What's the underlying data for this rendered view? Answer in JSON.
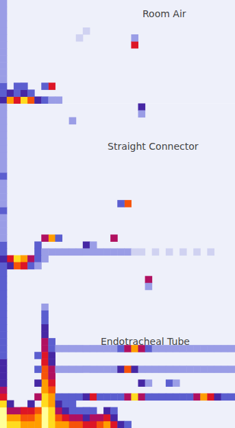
{
  "chart_data": [
    {
      "type": "heatmap",
      "title": "Room Air",
      "tick_labels": false,
      "grid": false,
      "xlim": [
        0,
        34
      ],
      "ylim": [
        0,
        15
      ],
      "color_range": [
        0,
        10
      ],
      "cells": [
        [
          0,
          0,
          4
        ],
        [
          0,
          1,
          3
        ],
        [
          0,
          2,
          3
        ],
        [
          0,
          3,
          2
        ],
        [
          0,
          4,
          2
        ],
        [
          0,
          5,
          2
        ],
        [
          0,
          6,
          2
        ],
        [
          0,
          7,
          2
        ],
        [
          0,
          8,
          2
        ],
        [
          0,
          9,
          2
        ],
        [
          0,
          10,
          2
        ],
        [
          0,
          11,
          2
        ],
        [
          0,
          12,
          2
        ],
        [
          0,
          13,
          2
        ],
        [
          0,
          14,
          2
        ],
        [
          1,
          0,
          8
        ],
        [
          2,
          0,
          6
        ],
        [
          3,
          0,
          9
        ],
        [
          4,
          0,
          7
        ],
        [
          5,
          0,
          4
        ],
        [
          6,
          0,
          3
        ],
        [
          7,
          0,
          2
        ],
        [
          8,
          0,
          2
        ],
        [
          1,
          1,
          4
        ],
        [
          2,
          1,
          3
        ],
        [
          3,
          1,
          4
        ],
        [
          4,
          1,
          3
        ],
        [
          7,
          2,
          6
        ],
        [
          6,
          2,
          3
        ],
        [
          2,
          2,
          3
        ],
        [
          3,
          2,
          3
        ],
        [
          19,
          8,
          6
        ],
        [
          19,
          9,
          2
        ],
        [
          11,
          9,
          1
        ],
        [
          12,
          10,
          1
        ]
      ]
    },
    {
      "type": "heatmap",
      "title": "Straight Connector",
      "tick_labels": false,
      "grid": false,
      "xlim": [
        0,
        34
      ],
      "ylim": [
        0,
        24
      ],
      "color_range": [
        0,
        10
      ],
      "cells": [
        [
          20,
          23,
          4
        ],
        [
          20,
          22,
          2
        ],
        [
          10,
          21,
          2
        ],
        [
          18,
          9,
          7
        ],
        [
          17,
          9,
          3
        ],
        [
          16,
          4,
          5
        ],
        [
          12,
          3,
          4
        ],
        [
          13,
          3,
          2
        ],
        [
          7,
          4,
          8
        ],
        [
          6,
          4,
          5
        ],
        [
          8,
          4,
          3
        ],
        [
          5,
          3,
          3
        ],
        [
          5,
          2,
          3
        ],
        [
          6,
          2,
          2
        ],
        [
          7,
          2,
          2
        ],
        [
          8,
          2,
          2
        ],
        [
          9,
          2,
          2
        ],
        [
          10,
          2,
          2
        ],
        [
          11,
          2,
          2
        ],
        [
          12,
          2,
          2
        ],
        [
          13,
          2,
          2
        ],
        [
          14,
          2,
          2
        ],
        [
          15,
          2,
          2
        ],
        [
          16,
          2,
          2
        ],
        [
          17,
          2,
          2
        ],
        [
          18,
          2,
          2
        ],
        [
          19,
          2,
          1
        ],
        [
          20,
          2,
          1
        ],
        [
          22,
          2,
          1
        ],
        [
          24,
          2,
          1
        ],
        [
          26,
          2,
          1
        ],
        [
          28,
          2,
          1
        ],
        [
          30,
          2,
          1
        ],
        [
          1,
          1,
          6
        ],
        [
          2,
          1,
          9
        ],
        [
          3,
          1,
          8
        ],
        [
          4,
          1,
          5
        ],
        [
          5,
          1,
          3
        ],
        [
          6,
          1,
          2
        ],
        [
          1,
          0,
          4
        ],
        [
          2,
          0,
          7
        ],
        [
          3,
          0,
          6
        ],
        [
          4,
          0,
          3
        ],
        [
          5,
          0,
          2
        ],
        [
          0,
          0,
          3
        ],
        [
          0,
          1,
          4
        ],
        [
          0,
          2,
          3
        ],
        [
          0,
          3,
          3
        ],
        [
          0,
          4,
          2
        ],
        [
          0,
          5,
          2
        ],
        [
          0,
          6,
          2
        ],
        [
          0,
          7,
          2
        ],
        [
          0,
          8,
          3
        ],
        [
          0,
          9,
          2
        ],
        [
          0,
          10,
          2
        ],
        [
          0,
          11,
          2
        ],
        [
          0,
          12,
          2
        ],
        [
          0,
          13,
          3
        ],
        [
          0,
          14,
          2
        ],
        [
          0,
          15,
          2
        ],
        [
          0,
          16,
          2
        ],
        [
          0,
          17,
          2
        ],
        [
          0,
          18,
          2
        ],
        [
          0,
          19,
          2
        ],
        [
          0,
          20,
          2
        ],
        [
          0,
          21,
          2
        ],
        [
          0,
          22,
          2
        ],
        [
          0,
          23,
          2
        ]
      ]
    },
    {
      "type": "heatmap",
      "title": "Endotracheal Tube",
      "tick_labels": false,
      "grid": false,
      "xlim": [
        0,
        34
      ],
      "ylim": [
        0,
        23
      ],
      "color_range": [
        0,
        10
      ],
      "cells": [
        [
          21,
          21,
          5
        ],
        [
          21,
          20,
          2
        ],
        [
          6,
          17,
          2
        ],
        [
          6,
          16,
          3
        ],
        [
          6,
          15,
          3
        ],
        [
          6,
          14,
          4
        ],
        [
          6,
          13,
          4
        ],
        [
          6,
          12,
          5
        ],
        [
          6,
          11,
          5
        ],
        [
          6,
          10,
          6
        ],
        [
          6,
          9,
          6
        ],
        [
          6,
          8,
          7
        ],
        [
          6,
          7,
          7
        ],
        [
          6,
          6,
          8
        ],
        [
          6,
          5,
          8
        ],
        [
          6,
          4,
          9
        ],
        [
          6,
          3,
          9
        ],
        [
          6,
          2,
          10
        ],
        [
          6,
          1,
          10
        ],
        [
          6,
          0,
          10
        ],
        [
          7,
          12,
          3
        ],
        [
          7,
          11,
          3
        ],
        [
          7,
          10,
          4
        ],
        [
          7,
          9,
          4
        ],
        [
          7,
          8,
          5
        ],
        [
          7,
          7,
          5
        ],
        [
          7,
          6,
          6
        ],
        [
          7,
          5,
          7
        ],
        [
          7,
          4,
          8
        ],
        [
          7,
          3,
          8
        ],
        [
          7,
          2,
          9
        ],
        [
          7,
          1,
          9
        ],
        [
          7,
          0,
          9
        ],
        [
          5,
          10,
          3
        ],
        [
          5,
          8,
          3
        ],
        [
          5,
          6,
          4
        ],
        [
          5,
          4,
          5
        ],
        [
          5,
          2,
          7
        ],
        [
          5,
          1,
          8
        ],
        [
          5,
          0,
          8
        ],
        [
          0,
          0,
          10
        ],
        [
          0,
          1,
          10
        ],
        [
          0,
          2,
          10
        ],
        [
          0,
          3,
          9
        ],
        [
          0,
          4,
          6
        ],
        [
          0,
          5,
          5
        ],
        [
          0,
          6,
          4
        ],
        [
          0,
          7,
          4
        ],
        [
          0,
          8,
          4
        ],
        [
          0,
          9,
          4
        ],
        [
          0,
          10,
          3
        ],
        [
          0,
          11,
          3
        ],
        [
          0,
          12,
          3
        ],
        [
          0,
          13,
          3
        ],
        [
          0,
          14,
          3
        ],
        [
          0,
          15,
          3
        ],
        [
          0,
          16,
          3
        ],
        [
          0,
          17,
          3
        ],
        [
          0,
          18,
          3
        ],
        [
          0,
          19,
          3
        ],
        [
          0,
          20,
          3
        ],
        [
          0,
          21,
          3
        ],
        [
          0,
          22,
          3
        ],
        [
          1,
          0,
          9
        ],
        [
          2,
          0,
          9
        ],
        [
          3,
          0,
          8
        ],
        [
          4,
          0,
          8
        ],
        [
          1,
          1,
          8
        ],
        [
          2,
          1,
          8
        ],
        [
          3,
          1,
          7
        ],
        [
          4,
          1,
          7
        ],
        [
          1,
          2,
          5
        ],
        [
          2,
          2,
          5
        ],
        [
          3,
          2,
          6
        ],
        [
          4,
          2,
          6
        ],
        [
          1,
          3,
          4
        ],
        [
          4,
          3,
          4
        ],
        [
          8,
          0,
          8
        ],
        [
          9,
          0,
          8
        ],
        [
          10,
          0,
          7
        ],
        [
          11,
          0,
          7
        ],
        [
          12,
          0,
          6
        ],
        [
          13,
          0,
          6
        ],
        [
          14,
          0,
          7
        ],
        [
          15,
          0,
          8
        ],
        [
          16,
          0,
          6
        ],
        [
          17,
          0,
          4
        ],
        [
          18,
          0,
          3
        ],
        [
          8,
          1,
          7
        ],
        [
          9,
          1,
          6
        ],
        [
          10,
          1,
          5
        ],
        [
          11,
          1,
          5
        ],
        [
          12,
          1,
          4
        ],
        [
          13,
          1,
          5
        ],
        [
          14,
          1,
          5
        ],
        [
          15,
          1,
          6
        ],
        [
          16,
          1,
          4
        ],
        [
          8,
          2,
          5
        ],
        [
          9,
          2,
          4
        ],
        [
          10,
          2,
          3
        ],
        [
          11,
          2,
          3
        ],
        [
          12,
          2,
          3
        ],
        [
          13,
          2,
          3
        ],
        [
          15,
          2,
          4
        ],
        [
          16,
          2,
          3
        ],
        [
          8,
          3,
          4
        ],
        [
          9,
          3,
          3
        ],
        [
          10,
          3,
          3
        ],
        [
          8,
          11,
          2
        ],
        [
          9,
          11,
          2
        ],
        [
          10,
          11,
          2
        ],
        [
          11,
          11,
          2
        ],
        [
          12,
          11,
          2
        ],
        [
          13,
          11,
          2
        ],
        [
          14,
          11,
          2
        ],
        [
          15,
          11,
          2
        ],
        [
          16,
          11,
          2
        ],
        [
          17,
          11,
          3
        ],
        [
          18,
          11,
          5
        ],
        [
          19,
          11,
          8
        ],
        [
          20,
          11,
          5
        ],
        [
          21,
          11,
          3
        ],
        [
          22,
          11,
          2
        ],
        [
          23,
          11,
          2
        ],
        [
          24,
          11,
          2
        ],
        [
          25,
          11,
          2
        ],
        [
          26,
          11,
          2
        ],
        [
          27,
          11,
          2
        ],
        [
          28,
          11,
          2
        ],
        [
          29,
          11,
          2
        ],
        [
          30,
          11,
          2
        ],
        [
          31,
          11,
          2
        ],
        [
          32,
          11,
          2
        ],
        [
          33,
          11,
          2
        ],
        [
          8,
          8,
          2
        ],
        [
          9,
          8,
          2
        ],
        [
          10,
          8,
          2
        ],
        [
          11,
          8,
          2
        ],
        [
          12,
          8,
          2
        ],
        [
          13,
          8,
          2
        ],
        [
          14,
          8,
          2
        ],
        [
          15,
          8,
          2
        ],
        [
          16,
          8,
          2
        ],
        [
          17,
          8,
          4
        ],
        [
          18,
          8,
          7
        ],
        [
          19,
          8,
          4
        ],
        [
          20,
          8,
          2
        ],
        [
          21,
          8,
          2
        ],
        [
          22,
          8,
          2
        ],
        [
          23,
          8,
          2
        ],
        [
          24,
          8,
          2
        ],
        [
          25,
          8,
          2
        ],
        [
          26,
          8,
          2
        ],
        [
          27,
          8,
          2
        ],
        [
          28,
          8,
          2
        ],
        [
          29,
          8,
          2
        ],
        [
          30,
          8,
          2
        ],
        [
          31,
          8,
          2
        ],
        [
          32,
          8,
          2
        ],
        [
          33,
          8,
          2
        ],
        [
          20,
          6,
          4
        ],
        [
          24,
          6,
          3
        ],
        [
          21,
          6,
          2
        ],
        [
          25,
          6,
          2
        ],
        [
          8,
          4,
          3
        ],
        [
          9,
          4,
          3
        ],
        [
          10,
          4,
          3
        ],
        [
          11,
          4,
          3
        ],
        [
          12,
          4,
          4
        ],
        [
          13,
          4,
          6
        ],
        [
          14,
          4,
          3
        ],
        [
          15,
          4,
          3
        ],
        [
          16,
          4,
          3
        ],
        [
          17,
          4,
          3
        ],
        [
          18,
          4,
          5
        ],
        [
          19,
          4,
          9
        ],
        [
          20,
          4,
          5
        ],
        [
          21,
          4,
          3
        ],
        [
          22,
          4,
          3
        ],
        [
          23,
          4,
          3
        ],
        [
          24,
          4,
          3
        ],
        [
          25,
          4,
          3
        ],
        [
          26,
          4,
          3
        ],
        [
          27,
          4,
          3
        ],
        [
          28,
          4,
          5
        ],
        [
          29,
          4,
          8
        ],
        [
          30,
          4,
          6
        ],
        [
          31,
          4,
          4
        ],
        [
          32,
          4,
          3
        ],
        [
          33,
          4,
          3
        ]
      ]
    }
  ]
}
